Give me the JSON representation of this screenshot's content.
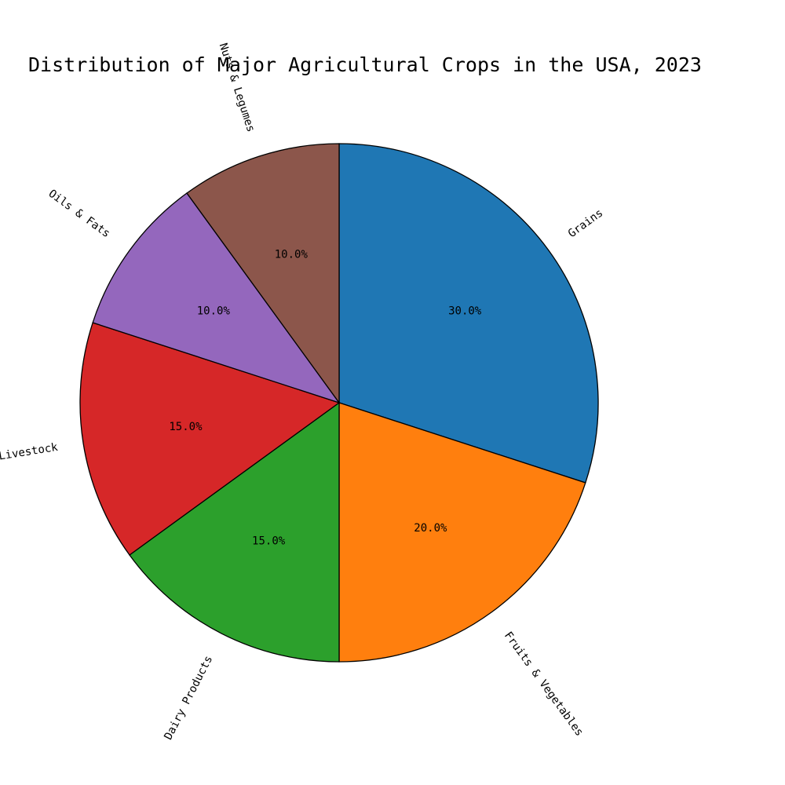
{
  "chart_data": {
    "type": "pie",
    "title": "Distribution of Major Agricultural Crops in the USA, 2023",
    "slices": [
      {
        "label": "Grains",
        "value": 30.0,
        "pct_label": "30.0%",
        "color": "#1f77b4"
      },
      {
        "label": "Fruits & Vegetables",
        "value": 20.0,
        "pct_label": "20.0%",
        "color": "#ff7f0e"
      },
      {
        "label": "Dairy Products",
        "value": 15.0,
        "pct_label": "15.0%",
        "color": "#2ca02c"
      },
      {
        "label": "Poultry & Livestock",
        "value": 15.0,
        "pct_label": "15.0%",
        "color": "#d62728"
      },
      {
        "label": "Oils & Fats",
        "value": 10.0,
        "pct_label": "10.0%",
        "color": "#9467bd"
      },
      {
        "label": "Nuts & Legumes",
        "value": 10.0,
        "pct_label": "10.0%",
        "color": "#8c564b"
      }
    ],
    "start_angle": "top",
    "direction": "clockwise",
    "legend": "none"
  }
}
